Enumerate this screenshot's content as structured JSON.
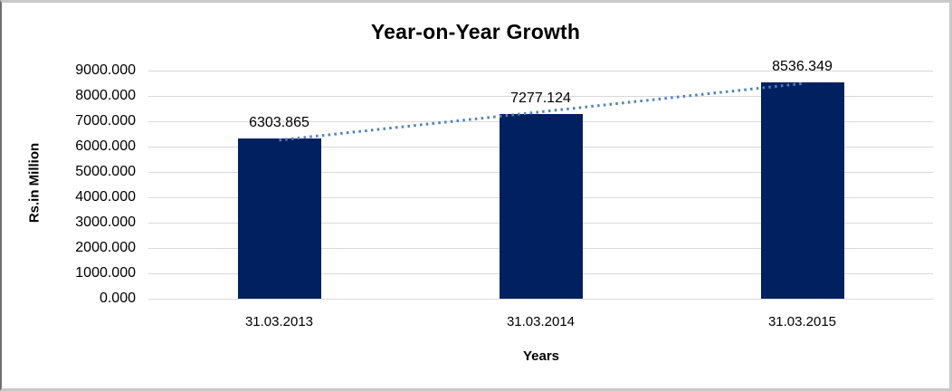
{
  "chart_data": {
    "type": "bar",
    "title": "Year-on-Year Growth",
    "xlabel": "Years",
    "ylabel": "Rs.in Million",
    "categories": [
      "31.03.2013",
      "31.03.2014",
      "31.03.2015"
    ],
    "values": [
      6303.865,
      7277.124,
      8536.349
    ],
    "data_labels": [
      "6303.865",
      "7277.124",
      "8536.349"
    ],
    "ylim": [
      0,
      9000
    ],
    "ytick_step": 1000,
    "ytick_labels": [
      "0.000",
      "1000.000",
      "2000.000",
      "3000.000",
      "4000.000",
      "5000.000",
      "6000.000",
      "7000.000",
      "8000.000",
      "9000.000"
    ],
    "decimals": 3,
    "grid": true,
    "legend": false,
    "bar_color": "#002060",
    "gridline_color": "#d9d9d9",
    "axis_line_color": "#d9d9d9",
    "text_color": "#000000",
    "background": "#ffffff",
    "trendline": {
      "type": "linear",
      "style": "dotted",
      "color": "#4f81bd"
    }
  }
}
